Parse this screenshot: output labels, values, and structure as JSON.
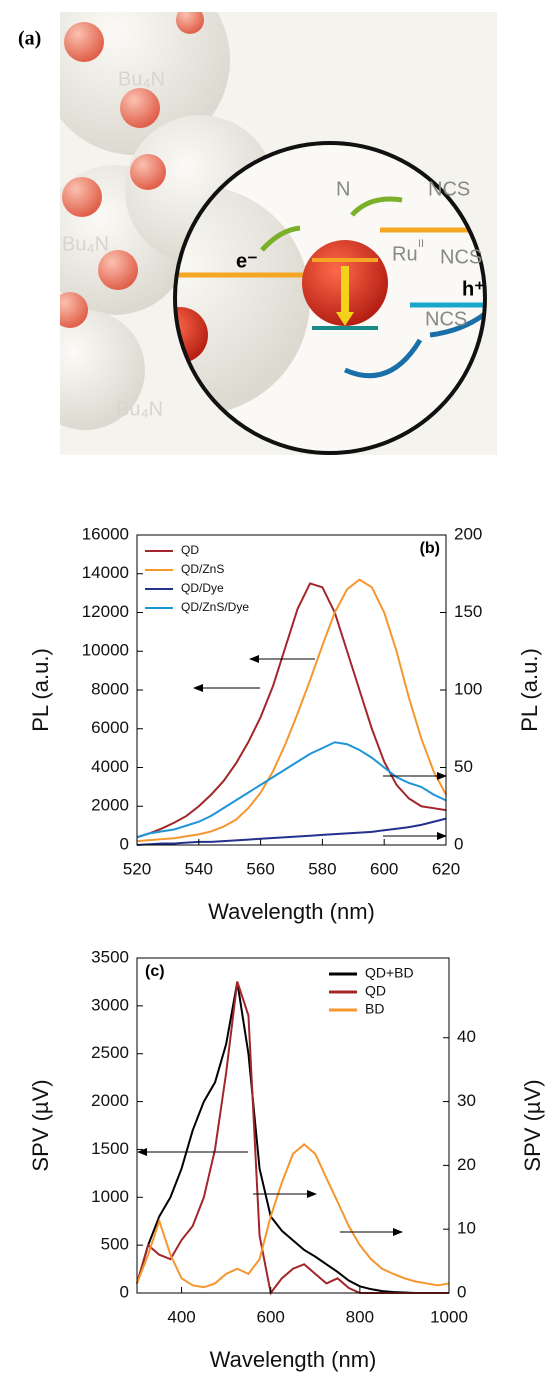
{
  "illustration": {
    "panel_label": "(a)",
    "electron": "e⁻",
    "hole": "h⁺",
    "cation_1": "Bu₄N",
    "cation_2": "Bu₄N",
    "cation_3": "Bu₄N",
    "ligand_1": "NCS",
    "ligand_2": "NCS",
    "ligand_3": "NCS",
    "metal": "Ru",
    "oxidation": "II",
    "nitrogen": "N"
  },
  "chart_data": [
    {
      "type": "line",
      "annotation": "(b)",
      "ylabel": "PL (a.u.)",
      "y2label": "PL (a.u.)",
      "xlabel": "Wavelength (nm)",
      "legend": "upper left",
      "x": [
        520,
        524,
        528,
        532,
        536,
        540,
        544,
        548,
        552,
        556,
        560,
        564,
        568,
        572,
        576,
        580,
        584,
        588,
        592,
        596,
        600,
        604,
        608,
        612,
        616,
        620
      ],
      "xlim": [
        520,
        620
      ],
      "xticks": [
        520,
        540,
        560,
        580,
        600,
        620
      ],
      "ylim": [
        0,
        16000
      ],
      "yticks": [
        0,
        2000,
        4000,
        6000,
        8000,
        10000,
        12000,
        14000,
        16000
      ],
      "y2lim": [
        0,
        200
      ],
      "y2ticks": [
        0,
        50,
        100,
        150,
        200
      ],
      "series": [
        {
          "name": "QD",
          "color": "#a3262a",
          "values": [
            400,
            600,
            850,
            1150,
            1500,
            2000,
            2600,
            3300,
            4200,
            5300,
            6600,
            8200,
            10200,
            12200,
            13500,
            13300,
            12000,
            10000,
            8000,
            6000,
            4300,
            3100,
            2400,
            2000,
            1900,
            1800
          ]
        },
        {
          "name": "QD/ZnS",
          "color": "#f5962e",
          "values": [
            200,
            250,
            300,
            350,
            450,
            550,
            700,
            950,
            1300,
            1900,
            2700,
            3800,
            5200,
            6800,
            8500,
            10300,
            12000,
            13200,
            13700,
            13300,
            12000,
            10000,
            7600,
            5500,
            3800,
            2600
          ]
        },
        {
          "name": "QD/Dye",
          "color": "#25318f",
          "axis": "y2",
          "values": [
            0,
            0.5,
            1,
            1,
            1.5,
            2,
            2,
            2.5,
            3,
            3.5,
            4,
            4.5,
            5,
            5.5,
            6,
            6.5,
            7,
            7.5,
            8,
            8.5,
            9.5,
            10.5,
            11.5,
            13,
            15,
            17
          ]
        },
        {
          "name": "QD/ZnS/Dye",
          "color": "#1f95d8",
          "axis": "y2",
          "values": [
            5,
            7.5,
            8.8,
            10,
            12.5,
            15,
            18.8,
            23.8,
            28.8,
            33.8,
            38.8,
            43.8,
            48.8,
            53.8,
            58.8,
            62.5,
            66.3,
            65,
            61.3,
            56.3,
            50,
            43.8,
            40,
            37.5,
            32.5,
            28.8
          ]
        }
      ]
    },
    {
      "type": "line",
      "annotation": "(c)",
      "ylabel": "SPV (µV)",
      "y2label": "SPV (µV)",
      "xlabel": "Wavelength (nm)",
      "legend": "upper right",
      "x": [
        300,
        325,
        350,
        375,
        400,
        425,
        450,
        475,
        500,
        525,
        550,
        575,
        600,
        625,
        650,
        675,
        700,
        725,
        750,
        775,
        800,
        825,
        850,
        875,
        900,
        925,
        950,
        975,
        1000
      ],
      "xlim": [
        300,
        1000
      ],
      "xticks": [
        400,
        600,
        800,
        1000
      ],
      "ylim": [
        0,
        3500
      ],
      "yticks": [
        0,
        500,
        1000,
        1500,
        2000,
        2500,
        3000,
        3500
      ],
      "y2lim": [
        0,
        52.5
      ],
      "y2ticks": [
        0,
        10,
        20,
        30,
        40
      ],
      "series": [
        {
          "name": "QD+BD",
          "color": "#000000",
          "values": [
            100,
            500,
            800,
            1000,
            1300,
            1700,
            2000,
            2200,
            2600,
            3250,
            2500,
            1300,
            800,
            650,
            550,
            450,
            380,
            300,
            220,
            130,
            70,
            40,
            20,
            10,
            5,
            0,
            0,
            0,
            0
          ]
        },
        {
          "name": "QD",
          "color": "#a3262a",
          "axis": "y2",
          "values": [
            1.5,
            7.5,
            6,
            5.3,
            8.3,
            10.5,
            15,
            22.5,
            34.5,
            48.8,
            43.5,
            9,
            0,
            2.3,
            3.8,
            4.5,
            3,
            1.5,
            2.3,
            0.8,
            0,
            0,
            0,
            0,
            0,
            0,
            0,
            0,
            0
          ]
        },
        {
          "name": "BD",
          "color": "#f5962e",
          "axis": "y2",
          "values": [
            1.5,
            6,
            11.3,
            6,
            2.3,
            1.2,
            0.9,
            1.5,
            3,
            3.8,
            3,
            5.3,
            12,
            17.3,
            21.8,
            23.3,
            21.8,
            18,
            14.3,
            10.5,
            7.5,
            5.3,
            3.8,
            3,
            2.3,
            1.8,
            1.5,
            1.2,
            1.5
          ]
        }
      ]
    }
  ]
}
